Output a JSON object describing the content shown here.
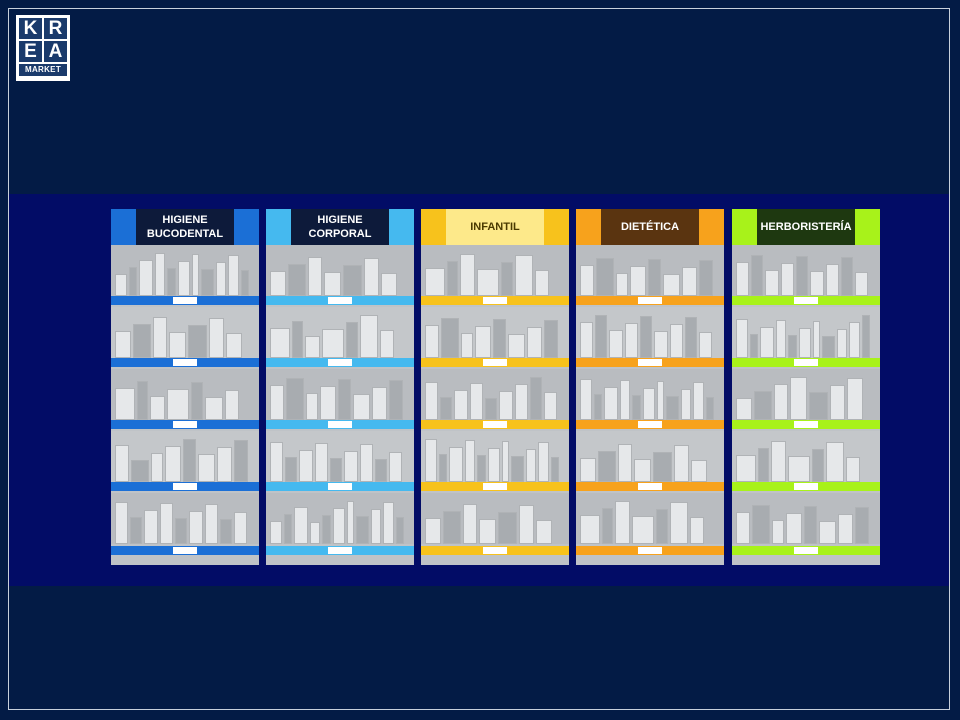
{
  "logo": {
    "letters": [
      "K",
      "R",
      "E",
      "A"
    ],
    "subtitle": "MARKET"
  },
  "panels": [
    {
      "title_line1": "HIGIENE",
      "title_line2": "BUCODENTAL",
      "header_bg": "#1b6fd6",
      "title_bg": "#0d1a3a",
      "shelf_color": "#1b6fd6"
    },
    {
      "title_line1": "HIGIENE",
      "title_line2": "CORPORAL",
      "header_bg": "#45b9ef",
      "title_bg": "#0d1a3a",
      "shelf_color": "#45b9ef"
    },
    {
      "title_line1": "INFANTIL",
      "title_line2": "",
      "header_bg": "#f7c21c",
      "title_bg": "#fde98a",
      "title_color": "#4a3a00",
      "shelf_color": "#f7c21c"
    },
    {
      "title_line1": "DIETÉTICA",
      "title_line2": "",
      "header_bg": "#f7a21c",
      "title_bg": "#5a3410",
      "shelf_color": "#f7a21c"
    },
    {
      "title_line1": "HERBORISTERÍA",
      "title_line2": "",
      "header_bg": "#a8f21a",
      "title_bg": "#1e3810",
      "shelf_color": "#a8f21a"
    }
  ]
}
